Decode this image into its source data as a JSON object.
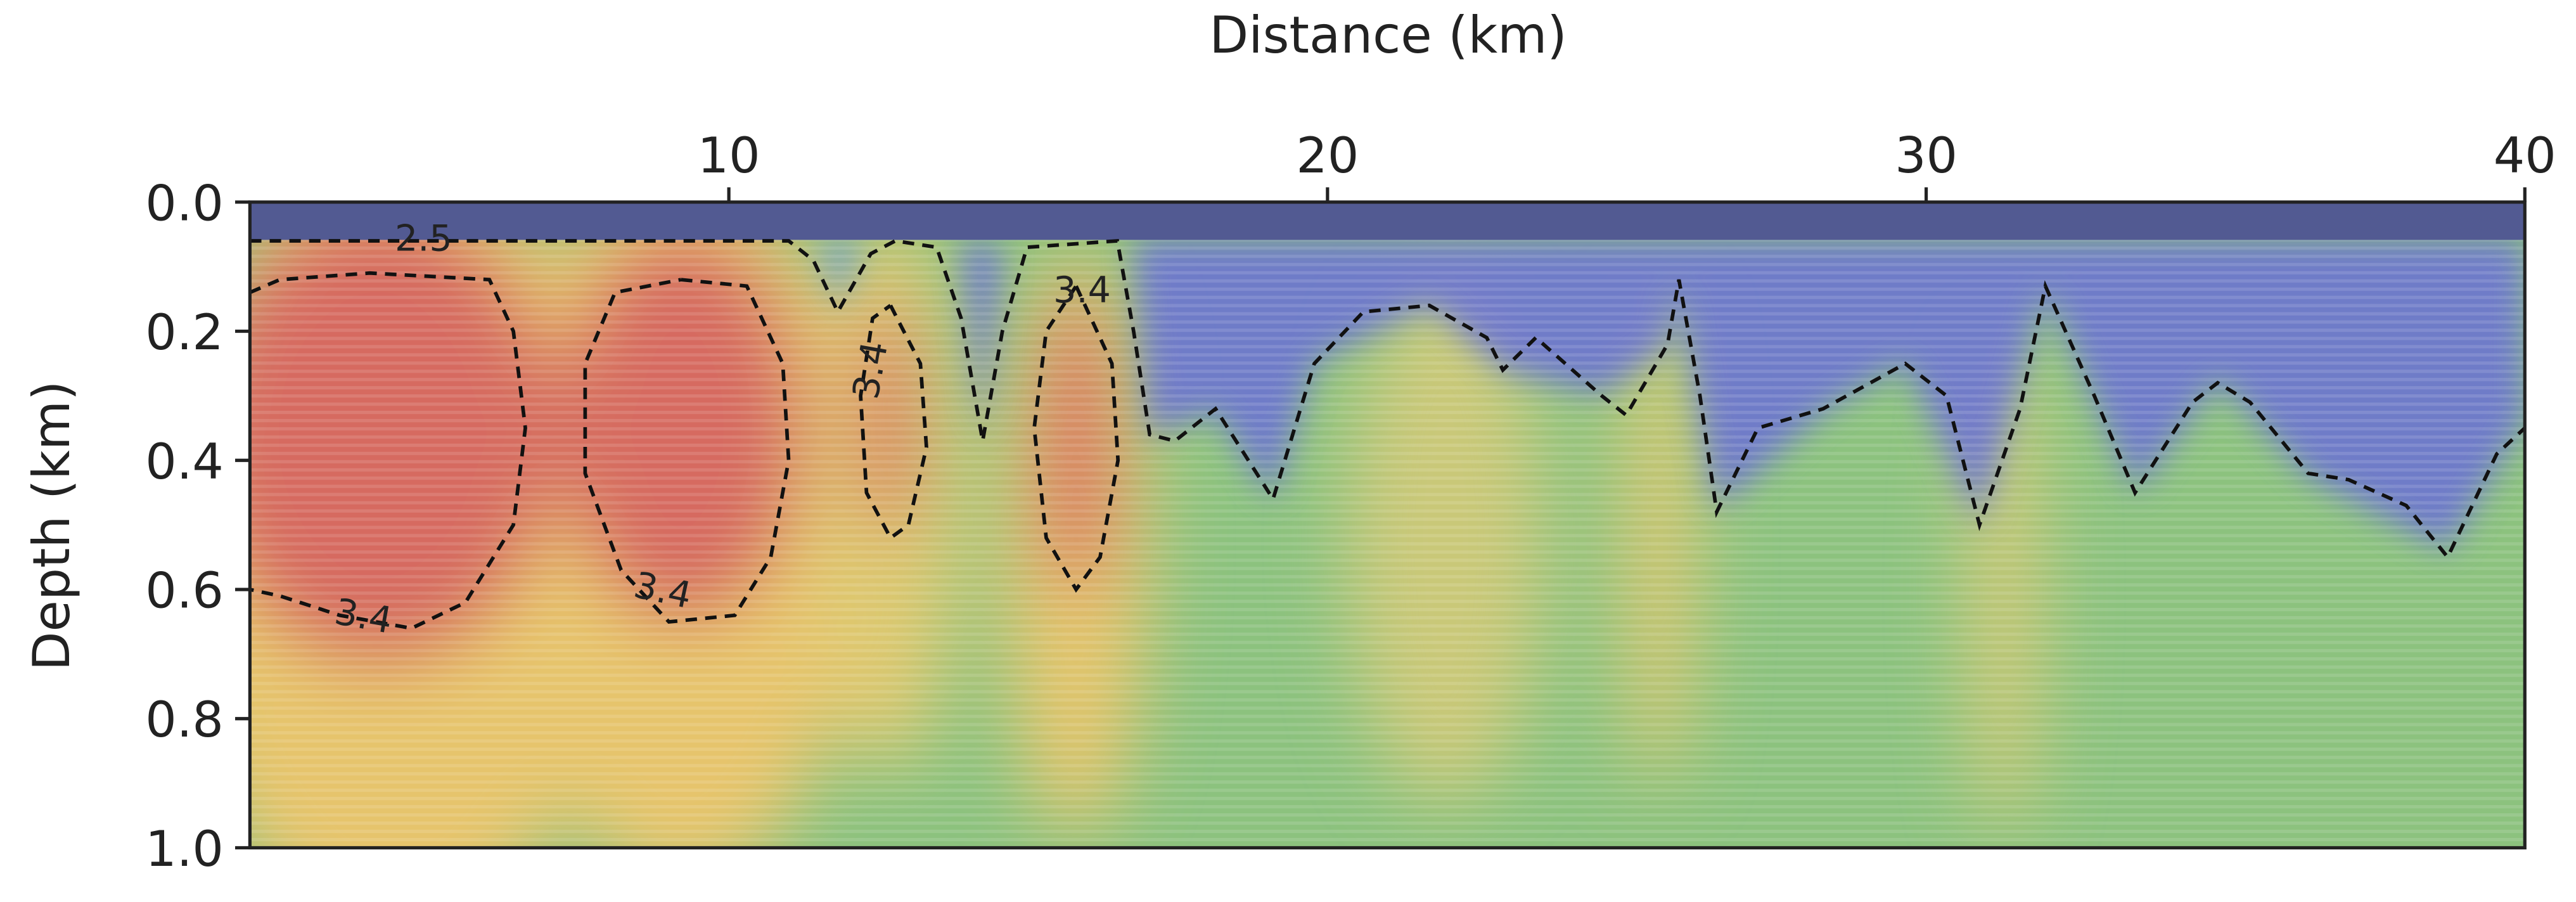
{
  "chart_data": {
    "type": "contour",
    "x_label": "Distance (km)",
    "y_label": "Depth (km)",
    "xlim": [
      2,
      40
    ],
    "ylim": [
      0,
      1
    ],
    "invert_y": true,
    "x_axis_position": "top",
    "xticks": [
      10,
      20,
      30,
      40
    ],
    "yticks": [
      {
        "value": 0,
        "label": "0.0"
      },
      0.2,
      0.4,
      0.6,
      0.8,
      {
        "value": 1,
        "label": "1.0"
      }
    ],
    "contour_color": "#111111",
    "contours": [
      {
        "level": 2.5,
        "x": [
          2.0,
          6.06,
          11.0,
          11.41,
          11.82,
          12.37,
          12.78,
          13.47,
          13.88,
          14.24,
          14.57,
          14.98,
          16.49,
          16.76,
          17.03,
          17.45,
          18.13,
          19.09,
          19.78,
          20.6,
          21.7,
          22.66,
          22.93,
          23.48,
          24.58,
          24.99,
          25.68,
          25.87,
          26.22,
          26.5,
          27.19,
          28.28,
          29.65,
          30.34,
          30.89,
          31.57,
          31.99,
          32.81,
          33.49,
          34.45,
          34.87,
          35.41,
          36.38,
          37.06,
          38.02,
          38.71,
          39.53,
          40.0
        ],
        "y": [
          0.06,
          0.06,
          0.06,
          0.09,
          0.17,
          0.08,
          0.06,
          0.07,
          0.18,
          0.37,
          0.2,
          0.07,
          0.06,
          0.2,
          0.36,
          0.37,
          0.32,
          0.46,
          0.25,
          0.17,
          0.16,
          0.21,
          0.26,
          0.21,
          0.3,
          0.33,
          0.22,
          0.12,
          0.3,
          0.48,
          0.35,
          0.32,
          0.25,
          0.3,
          0.5,
          0.32,
          0.13,
          0.3,
          0.45,
          0.31,
          0.28,
          0.31,
          0.42,
          0.43,
          0.47,
          0.55,
          0.39,
          0.35
        ]
      },
      {
        "level": 3.4,
        "x": [
          2.0,
          2.5,
          4.0,
          6.0,
          6.4,
          6.6,
          6.4,
          5.6,
          4.7,
          3.5,
          2.5,
          2.0
        ],
        "y": [
          0.14,
          0.12,
          0.11,
          0.12,
          0.2,
          0.35,
          0.5,
          0.62,
          0.66,
          0.64,
          0.61,
          0.6
        ]
      },
      {
        "level": 3.4,
        "x": [
          9.2,
          10.3,
          10.9,
          11.0,
          10.7,
          10.1,
          9.0,
          8.2,
          7.6,
          7.6,
          8.1,
          9.2
        ],
        "y": [
          0.12,
          0.13,
          0.25,
          0.4,
          0.55,
          0.64,
          0.65,
          0.57,
          0.42,
          0.25,
          0.14,
          0.12
        ]
      },
      {
        "level": 3.4,
        "x": [
          12.7,
          13.2,
          13.3,
          13.0,
          12.7,
          12.3,
          12.2,
          12.4,
          12.7
        ],
        "y": [
          0.16,
          0.25,
          0.38,
          0.5,
          0.52,
          0.45,
          0.3,
          0.18,
          0.16
        ]
      },
      {
        "level": 3.4,
        "x": [
          15.8,
          16.4,
          16.5,
          16.2,
          15.8,
          15.3,
          15.1,
          15.3,
          15.8
        ],
        "y": [
          0.13,
          0.25,
          0.4,
          0.55,
          0.6,
          0.52,
          0.35,
          0.2,
          0.13
        ]
      }
    ]
  }
}
